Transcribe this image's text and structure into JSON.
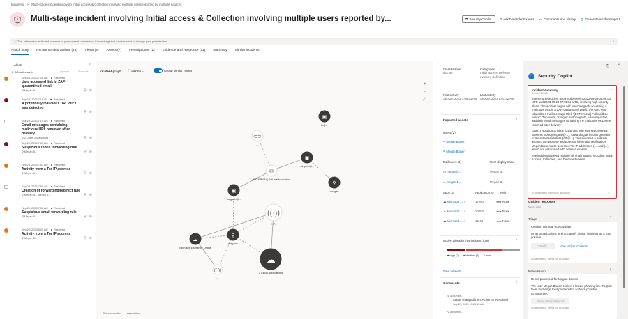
{
  "breadcrumb": {
    "root": "Incidents",
    "separator": ">",
    "current": "Multi-stage incident involving Initial access & Collection involving multiple users reported by multiple sources"
  },
  "header": {
    "title": "Multi-stage incident involving Initial access & Collection involving multiple users reported by...",
    "actions": {
      "copilot": "Security Copilot",
      "experts": "Ask Defender Experts",
      "comments": "Comments and history",
      "report": "Generate incident report"
    }
  },
  "info_bar": "This information is limited because of your current permission. Contact a global administrator to change your permissions.",
  "tabs": [
    "Attack story",
    "Recommended actions (23)",
    "Alerts (8)",
    "Assets (7)",
    "Investigations (1)",
    "Evidence and Response (11)",
    "Summary",
    "Similar incidents"
  ],
  "alerts": {
    "title": "Alerts",
    "active": "8/8 Active alerts",
    "unpin": "Unpin all",
    "show": "Show all",
    "items": [
      {
        "time": "Sep 29, 2023 7:08 AM",
        "status": "Resolved",
        "title": "User accessed link in ZAP-quarantined email",
        "sub": "Megan B...",
        "sev": "#e8751a"
      },
      {
        "time": "Sep 29, 2023 7:11 AM",
        "status": "Resolved",
        "title": "A potentially malicious URL click was detected",
        "sub": "",
        "sev": "#8b0b1b"
      },
      {
        "time": "Sep 29, 2023 7:14 AM",
        "status": "Resolved",
        "title": "Email messages containing malicious URL removed after delivery",
        "sub": "2 Users  2 Mailboxes",
        "sev": "info"
      },
      {
        "time": "Sep 29, 2023 7:53 AM",
        "status": "Resolved",
        "title": "Suspicious inbox forwarding rule",
        "sub": "Megan B...",
        "sev": "#8b0b1b"
      },
      {
        "time": "Sep 29, 2023 7:53 AM",
        "status": "Resolved",
        "title": "Activity from a Tor IP address",
        "sub": "Megan B...",
        "sev": "#e8751a"
      },
      {
        "time": "Sep 29, 2023 7:55 AM",
        "status": "Resolved",
        "title": "Creation of forwarding/redirect rule",
        "sub": "Megan B...  Megan B...",
        "sev": "info"
      },
      {
        "time": "Sep 29, 2023 7:55 AM",
        "status": "Resolved",
        "title": "Suspicious email forwarding rule",
        "sub": "Megan B...",
        "sev": "#e8751a"
      },
      {
        "time": "Sep 29, 2023 8:01 AM",
        "status": "Resolved",
        "title": "Activity from a Tor IP address",
        "sub": "Megan B...",
        "sev": "#e8751a"
      }
    ]
  },
  "graph": {
    "title": "Incident graph",
    "layout": "Layout",
    "group_toggle": "Group similar nodes",
    "group_on": true,
    "nodes": [
      "fb@...",
      "...",
      "meganb@...",
      "[EXTERNAL] Full mailbox notice",
      "morgan",
      "meganb@...",
      "2 IPs",
      "meganb",
      "Microsoft Exchange Online",
      "...",
      "2 Cloud Applications"
    ],
    "legend": [
      "Communication",
      "Association"
    ]
  },
  "details": {
    "classification_label": "Classification",
    "classification": "Not set",
    "categories_label": "Categories",
    "categories": "Initial access, Defense evasion, Collection",
    "first_label": "First activity",
    "first": "Sep 29, 2023 7:08:53 AM",
    "last_label": "Last activity",
    "last": "Sep 29, 2023 8:01:52 AM",
    "impacted": "Impacted assets",
    "users_label": "Users (2)",
    "users": [
      "Megan Bowen",
      "Megan Bowen"
    ],
    "mailboxes_label": "Mailboxes (2)",
    "user_display": "User display name",
    "mailboxes": [
      {
        "name": "megan@...",
        "display": "Megan B..."
      },
      {
        "name": "Megan B...",
        "display": "Megan B..."
      }
    ],
    "apps_label": "Apps (3)",
    "appid_label": "Application ID",
    "risk_label": "Risk",
    "apps": [
      {
        "name": "Microsoft ...",
        "id": "12260",
        "risk": "None"
      },
      {
        "name": "Microsoft ...",
        "id": "20893",
        "risk": "None"
      },
      {
        "name": "Microsoft ...",
        "id": "11161",
        "risk": "None"
      }
    ],
    "active_alerts": "Active alerts in this incident (0/8)",
    "high": "High (2)",
    "medium": "Medium (4)",
    "more": "2 more",
    "view_all": "View all alerts",
    "comments": "Comments",
    "comment_user": "apsum@...",
    "comment_text": "Status changed from 'Active' to 'Resolved'.",
    "comment_time": "Sep 29, 2023 10:20:13 AM",
    "comment_user2": "apsum@..."
  },
  "copilot": {
    "title": "Security Copilot",
    "summary_title": "Incident summary",
    "summary_date": "Dec 12, 2023",
    "summary_p1": "The security incident occurred between 2023-09-29 06:08:53 UTC and 2023-09-29 07:01:52 UTC, involving high severity alerts. The incident began with user 'meganb' accessing a malicious URL in a ZAP-quarantined email. The URL was related to a mail message titled \"[EXTERNAL] Full mailbox notice\". Two users, 'morgan' and 'meganb', were impacted, and their email messages containing the malicious URL were removed after delivery.",
    "summary_p2": "Later, a suspicious inbox forwarding rule was set on Megan Bowen's inbox (meganb@...), forwarding all incoming emails to the external address (dfb@...). This indicated a possible account compromise and potential information exfiltration. Megan Bowen also accessed Tor IP addresses (...) and (...), which are associated with defense evasion.",
    "summary_p3": "The incident involved multiple kill chain stages, including Initial Access, Collection, and Defense Evasion.",
    "ai_note": "AI generated. Verify for accuracy.",
    "guided": "Guided response",
    "guided_sub": "Sep 29, 2023",
    "triage": "Triage",
    "triage_title": "Confirm this is a 'true positive'",
    "triage_text": "Other organizations tend to classify similar incidents as a 'true positive'.",
    "classify": "Classify",
    "view_similar": "View similar incidents",
    "remediation": "Remediation",
    "rem_title": "Reset password for Megan Bowen",
    "rem_text": "The user Megan Bowen clicked a known phishing link. Require them to change their password to address possible compromise.",
    "reset": "Reset user password"
  },
  "colors": {
    "accent": "#0f6cbd",
    "high": "#8b0b1b",
    "medium": "#d13438",
    "highlight_border": "#d13438"
  }
}
